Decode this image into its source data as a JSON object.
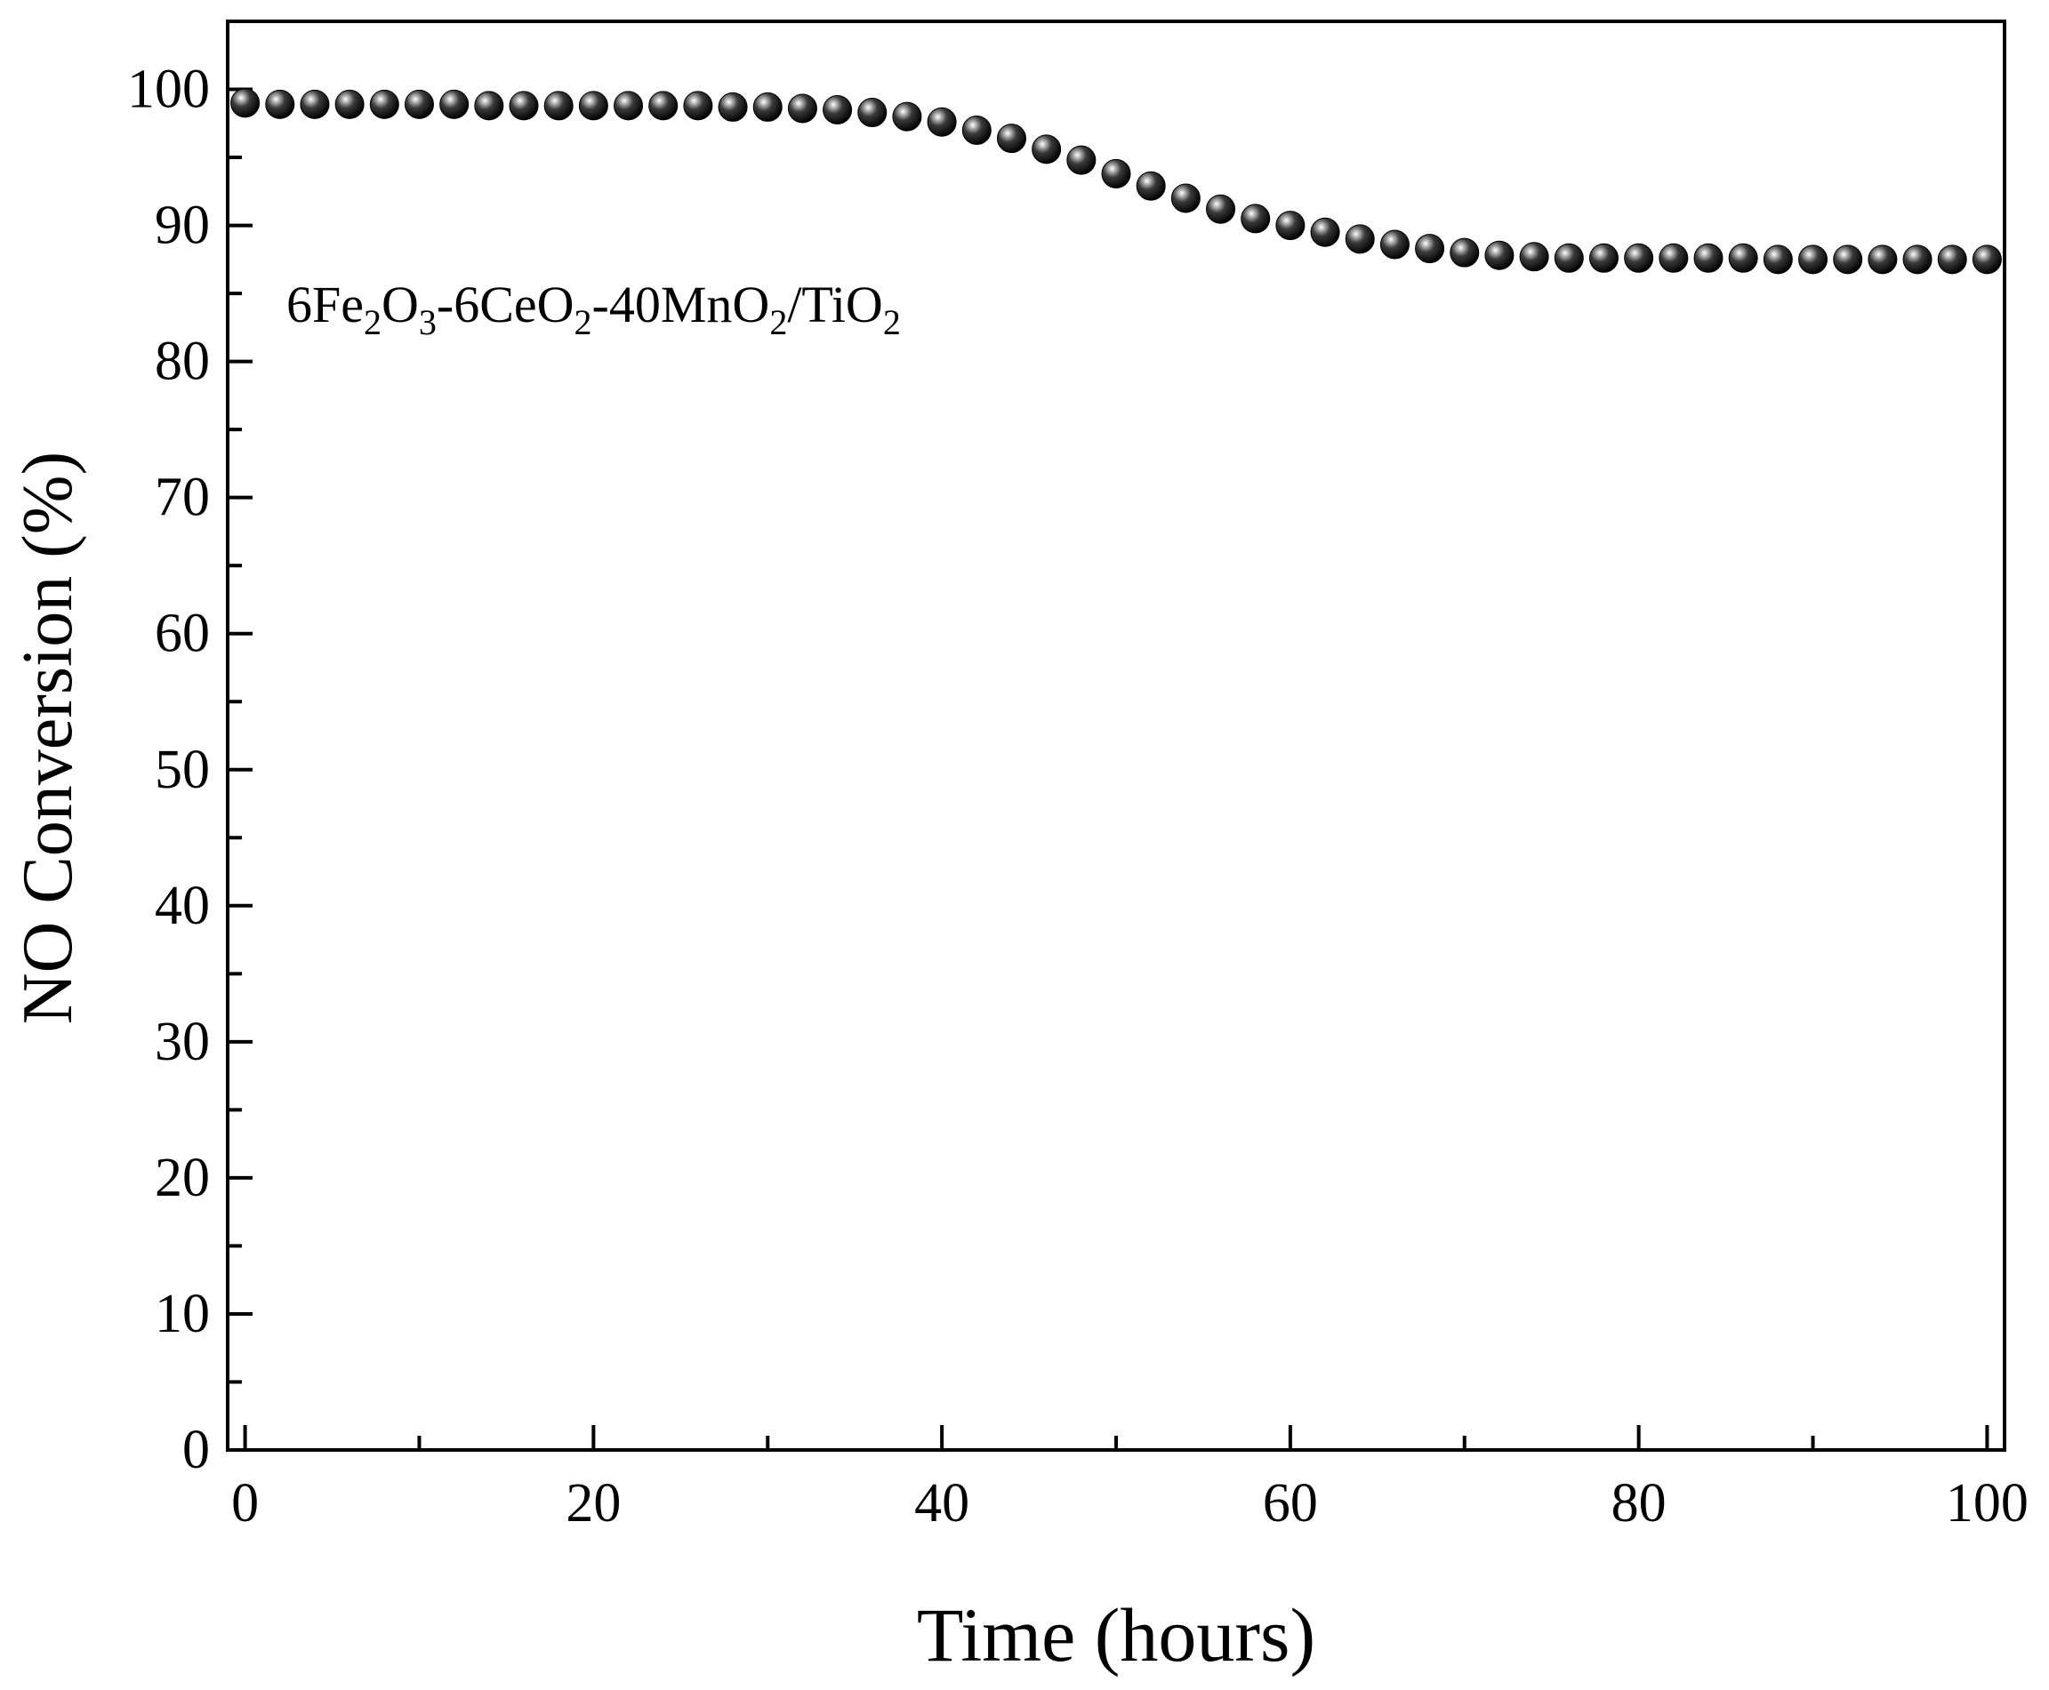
{
  "chart_data": {
    "type": "scatter",
    "title": "",
    "xlabel": "Time (hours)",
    "ylabel": "NO Conversion (%)",
    "annotation": {
      "parts": [
        {
          "text": "6Fe",
          "sub": false
        },
        {
          "text": "2",
          "sub": true
        },
        {
          "text": "O",
          "sub": false
        },
        {
          "text": "3",
          "sub": true
        },
        {
          "text": "-6CeO",
          "sub": false
        },
        {
          "text": "2",
          "sub": true
        },
        {
          "text": "-40MnO",
          "sub": false
        },
        {
          "text": "2",
          "sub": true
        },
        {
          "text": "/TiO",
          "sub": false
        },
        {
          "text": "2",
          "sub": true
        }
      ]
    },
    "xlim": [
      -1,
      101
    ],
    "ylim": [
      0,
      105
    ],
    "x_ticks": [
      "0",
      "20",
      "40",
      "60",
      "80",
      "100"
    ],
    "y_ticks": [
      "0",
      "10",
      "20",
      "30",
      "40",
      "50",
      "60",
      "70",
      "80",
      "90",
      "100"
    ],
    "marker_color": "#000000",
    "grid": false,
    "series": [
      {
        "x": [
          0,
          2,
          4,
          6,
          8,
          10,
          12,
          14,
          16,
          18,
          20,
          22,
          24,
          26,
          28,
          30,
          32,
          34,
          36,
          38,
          40,
          42,
          44,
          46,
          48,
          50,
          52,
          54,
          56,
          58,
          60,
          62,
          64,
          66,
          68,
          70,
          72,
          74,
          76,
          78,
          80,
          82,
          84,
          86,
          88,
          90,
          92,
          94,
          96,
          98,
          100
        ],
        "y": [
          99.0,
          98.9,
          98.9,
          98.9,
          98.9,
          98.9,
          98.9,
          98.8,
          98.8,
          98.8,
          98.8,
          98.8,
          98.8,
          98.8,
          98.7,
          98.7,
          98.6,
          98.5,
          98.3,
          98.0,
          97.6,
          97.0,
          96.4,
          95.6,
          94.8,
          93.8,
          92.9,
          92.0,
          91.2,
          90.5,
          90.0,
          89.5,
          89.0,
          88.6,
          88.3,
          88.0,
          87.8,
          87.7,
          87.6,
          87.6,
          87.6,
          87.6,
          87.6,
          87.6,
          87.5,
          87.5,
          87.5,
          87.5,
          87.5,
          87.5,
          87.5
        ]
      }
    ]
  }
}
